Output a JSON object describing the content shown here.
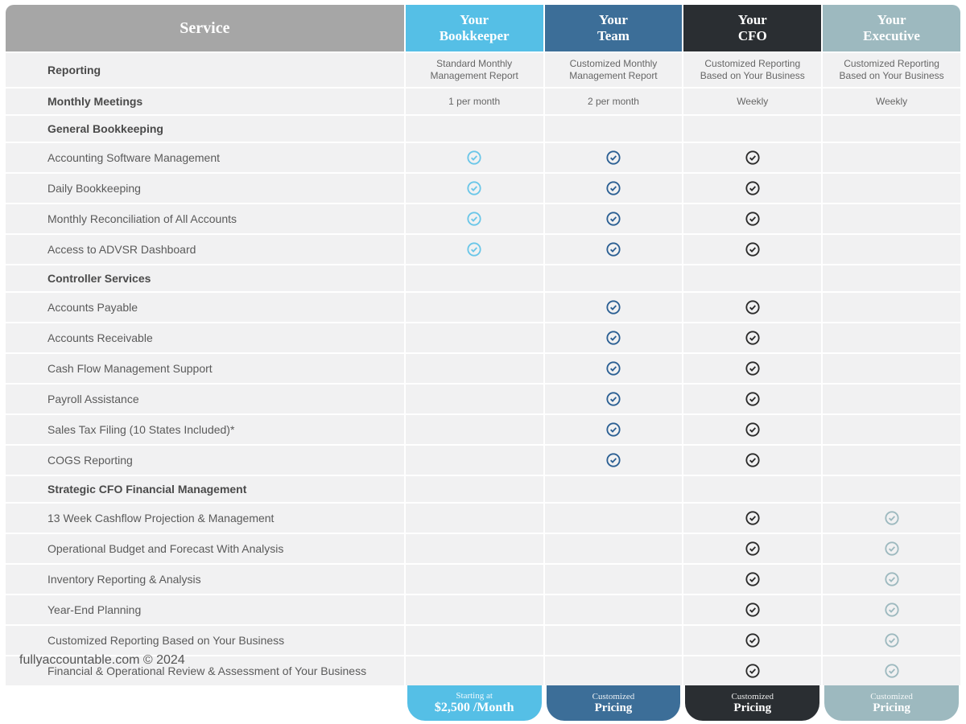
{
  "serviceHeader": "Service",
  "tiers": [
    {
      "line1": "Your",
      "line2": "Bookkeeper",
      "bg": "#55bfe6"
    },
    {
      "line1": "Your",
      "line2": "Team",
      "bg": "#3c6e98"
    },
    {
      "line1": "Your",
      "line2": "CFO",
      "bg": "#2a2e32"
    },
    {
      "line1": "Your",
      "line2": "Executive",
      "bg": "#9db9bf"
    }
  ],
  "checkColors": [
    "#6ac6e8",
    "#2b5f93",
    "#2b2b2b",
    "#9db9bf"
  ],
  "rows": [
    {
      "label": "Reporting",
      "section": true,
      "text": [
        "Standard Monthly Management Report",
        "Customized Monthly Management Report",
        "Customized Reporting Based on Your Business",
        "Customized Reporting Based on Your Business"
      ]
    },
    {
      "label": "Monthly Meetings",
      "section": true,
      "text": [
        "1 per month",
        "2 per month",
        "Weekly",
        "Weekly"
      ]
    },
    {
      "label": "General Bookkeeping",
      "section": true
    },
    {
      "label": "Accounting Software Management",
      "checks": [
        true,
        true,
        true,
        false
      ]
    },
    {
      "label": "Daily Bookkeeping",
      "checks": [
        true,
        true,
        true,
        false
      ]
    },
    {
      "label": "Monthly Reconciliation of All Accounts",
      "checks": [
        true,
        true,
        true,
        false
      ]
    },
    {
      "label": "Access to ADVSR Dashboard",
      "checks": [
        true,
        true,
        true,
        false
      ]
    },
    {
      "label": "Controller Services",
      "section": true
    },
    {
      "label": "Accounts Payable",
      "checks": [
        false,
        true,
        true,
        false
      ]
    },
    {
      "label": "Accounts Receivable",
      "checks": [
        false,
        true,
        true,
        false
      ]
    },
    {
      "label": "Cash Flow Management Support",
      "checks": [
        false,
        true,
        true,
        false
      ]
    },
    {
      "label": "Payroll Assistance",
      "checks": [
        false,
        true,
        true,
        false
      ]
    },
    {
      "label": "Sales Tax Filing (10 States Included)*",
      "checks": [
        false,
        true,
        true,
        false
      ]
    },
    {
      "label": "COGS Reporting",
      "checks": [
        false,
        true,
        true,
        false
      ]
    },
    {
      "label": "Strategic CFO Financial Management",
      "section": true
    },
    {
      "label": "13 Week Cashflow Projection & Management",
      "checks": [
        false,
        false,
        true,
        true
      ]
    },
    {
      "label": "Operational Budget and Forecast With Analysis",
      "checks": [
        false,
        false,
        true,
        true
      ]
    },
    {
      "label": "Inventory Reporting & Analysis",
      "checks": [
        false,
        false,
        true,
        true
      ]
    },
    {
      "label": "Year-End Planning",
      "checks": [
        false,
        false,
        true,
        true
      ]
    },
    {
      "label": "Customized Reporting Based on Your Business",
      "checks": [
        false,
        false,
        true,
        true
      ]
    },
    {
      "label": "Financial & Operational Review & Assessment of Your Business",
      "checks": [
        false,
        false,
        true,
        true
      ]
    }
  ],
  "footers": [
    {
      "line1": "Starting at",
      "line2": "$2,500 /Month",
      "bg": "#55bfe6"
    },
    {
      "line1": "Customized",
      "line2": "Pricing",
      "bg": "#3c6e98"
    },
    {
      "line1": "Customized",
      "line2": "Pricing",
      "bg": "#2a2e32"
    },
    {
      "line1": "Customized",
      "line2": "Pricing",
      "bg": "#9db9bf"
    }
  ],
  "attribution": "fullyaccountable.com  © 2024",
  "colWidths": {
    "service": "42%",
    "tier": "14.5%"
  }
}
